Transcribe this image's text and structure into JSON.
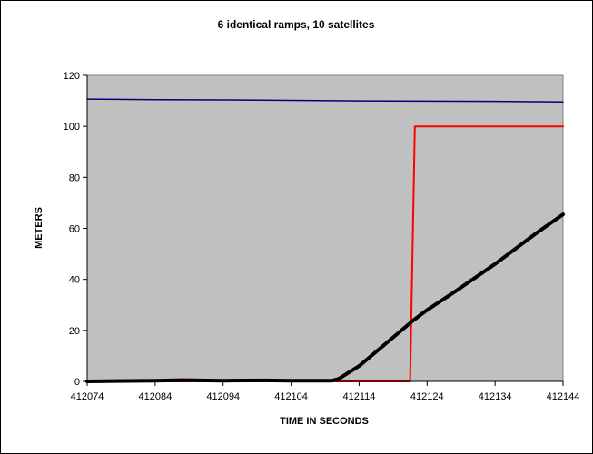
{
  "chart_data": {
    "type": "line",
    "title": "6 identical ramps, 10 satellites",
    "xlabel": "TIME IN SECONDS",
    "ylabel": "METERS",
    "xlim": [
      412074,
      412144
    ],
    "ylim": [
      0,
      120
    ],
    "x_ticks": [
      412074,
      412084,
      412094,
      412104,
      412114,
      412124,
      412134,
      412144
    ],
    "y_ticks": [
      0,
      20,
      40,
      60,
      80,
      100,
      120
    ],
    "grid": false,
    "legend": "none",
    "plot_background": "#c0c0c0",
    "series": [
      {
        "color": "#000080",
        "width": 1.5,
        "points": [
          [
            412074,
            110.7
          ],
          [
            412084,
            110.5
          ],
          [
            412094,
            110.4
          ],
          [
            412104,
            110.2
          ],
          [
            412114,
            110.0
          ],
          [
            412124,
            109.9
          ],
          [
            412134,
            109.8
          ],
          [
            412144,
            109.6
          ]
        ]
      },
      {
        "color": "#ff0000",
        "width": 2,
        "points": [
          [
            412074,
            0
          ],
          [
            412121.5,
            0
          ],
          [
            412122.2,
            100
          ],
          [
            412144,
            100
          ]
        ]
      },
      {
        "color": "#000000",
        "width": 4,
        "points": [
          [
            412074,
            0
          ],
          [
            412084,
            0.3
          ],
          [
            412088,
            0.5
          ],
          [
            412094,
            0.3
          ],
          [
            412100,
            0.4
          ],
          [
            412104,
            0.3
          ],
          [
            412110,
            0.3
          ],
          [
            412111,
            1
          ],
          [
            412114,
            6
          ],
          [
            412118,
            15
          ],
          [
            412122,
            24
          ],
          [
            412124,
            28
          ],
          [
            412128,
            35
          ],
          [
            412134,
            46
          ],
          [
            412140,
            58
          ],
          [
            412144,
            65.5
          ]
        ]
      }
    ]
  }
}
